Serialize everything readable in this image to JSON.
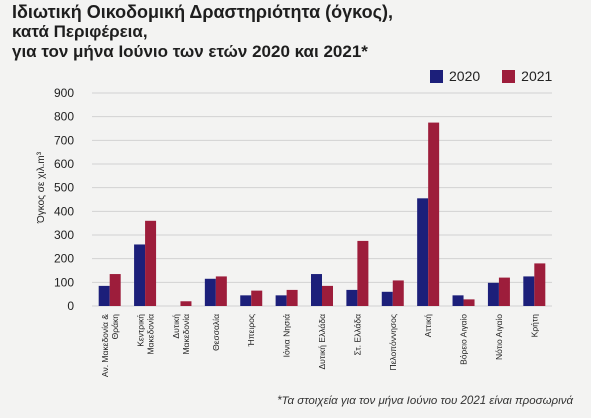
{
  "title_lines": [
    "Ιδιωτική Οικοδομική Δραστηριότητα (όγκος),",
    "κατά Περιφέρεια,",
    "για τον μήνα Ιούνιο των ετών 2020 και 2021*"
  ],
  "footnote": "*Τα στοιχεία για τον μήνα Ιούνιο του 2021 είναι προσωρινά",
  "colors": {
    "s2020": "#1c1f7a",
    "s2021": "#9d1d3b",
    "grid": "#d2d2d2",
    "background": "#f3f3f2"
  },
  "chart_data": {
    "type": "bar",
    "title": "Ιδιωτική Οικοδομική Δραστηριότητα (όγκος), κατά Περιφέρεια, για τον μήνα Ιούνιο των ετών 2020 και 2021*",
    "xlabel": "",
    "ylabel": "Όγκος σε χιλ.m³",
    "ylim": [
      0,
      900
    ],
    "yticks": [
      0,
      100,
      200,
      300,
      400,
      500,
      600,
      700,
      800,
      900
    ],
    "grid": true,
    "legend_position": "top-right",
    "categories": [
      [
        "Αν. Μακεδονία &",
        "Θράκη"
      ],
      [
        "Κεντρική",
        "Μακεδονία"
      ],
      [
        "Δυτική",
        "Μακεδονία"
      ],
      [
        "Θεσσαλία"
      ],
      [
        "Ήπειρος"
      ],
      [
        "Ιόνια Νησιά"
      ],
      [
        "Δυτική Ελλάδα"
      ],
      [
        "Στ. Ελλάδα"
      ],
      [
        "Πελοπόννησος"
      ],
      [
        "Αττική"
      ],
      [
        "Βόρειο Αιγαίο"
      ],
      [
        "Νότιο Αιγαίο"
      ],
      [
        "Κρήτη"
      ]
    ],
    "series": [
      {
        "name": "2020",
        "values": [
          85,
          260,
          0,
          115,
          45,
          45,
          135,
          68,
          60,
          455,
          45,
          98,
          125
        ]
      },
      {
        "name": "2021",
        "values": [
          135,
          360,
          20,
          125,
          65,
          68,
          85,
          275,
          108,
          775,
          28,
          120,
          180
        ]
      }
    ]
  }
}
